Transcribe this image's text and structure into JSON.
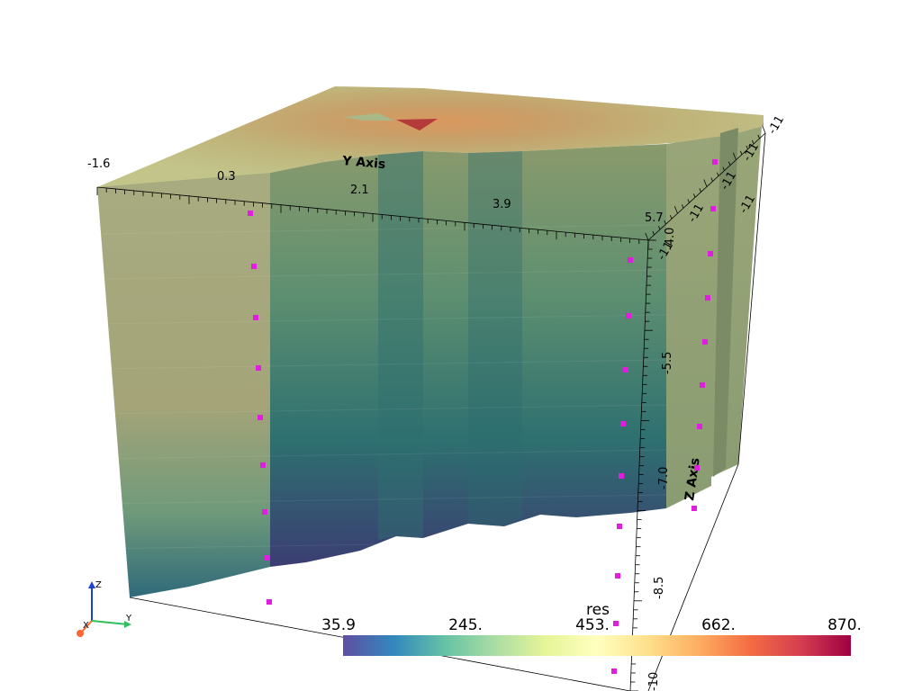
{
  "scalar_bar": {
    "title": "res",
    "ticks": [
      "35.9",
      "245.",
      "453.",
      "662.",
      "870."
    ],
    "colors": [
      "#5e4fa2",
      "#3288bd",
      "#66c2a5",
      "#abdda4",
      "#e6f598",
      "#ffffbf",
      "#fee08b",
      "#fdae61",
      "#f46d43",
      "#d53e4f",
      "#9e0142"
    ]
  },
  "axes": {
    "y_title": "Y Axis",
    "y_ticks": [
      "-1.6",
      "0.3",
      "2.1",
      "3.9",
      "5.7"
    ],
    "z_title": "Z Axis",
    "z_ticks": [
      "-4.0",
      "-5.5",
      "-7.0",
      "-8.5",
      "-10"
    ],
    "x_ticks": [
      "-11",
      "-11",
      "-11",
      "-11",
      "-11",
      "-11"
    ]
  },
  "orientation": {
    "z": "Z",
    "y": "Y",
    "x": "X",
    "colors": {
      "z": "#1f3fd8",
      "y": "#2fbf5f",
      "x": "#ff6633"
    }
  },
  "colors": {
    "marker": "#e01ee0"
  }
}
